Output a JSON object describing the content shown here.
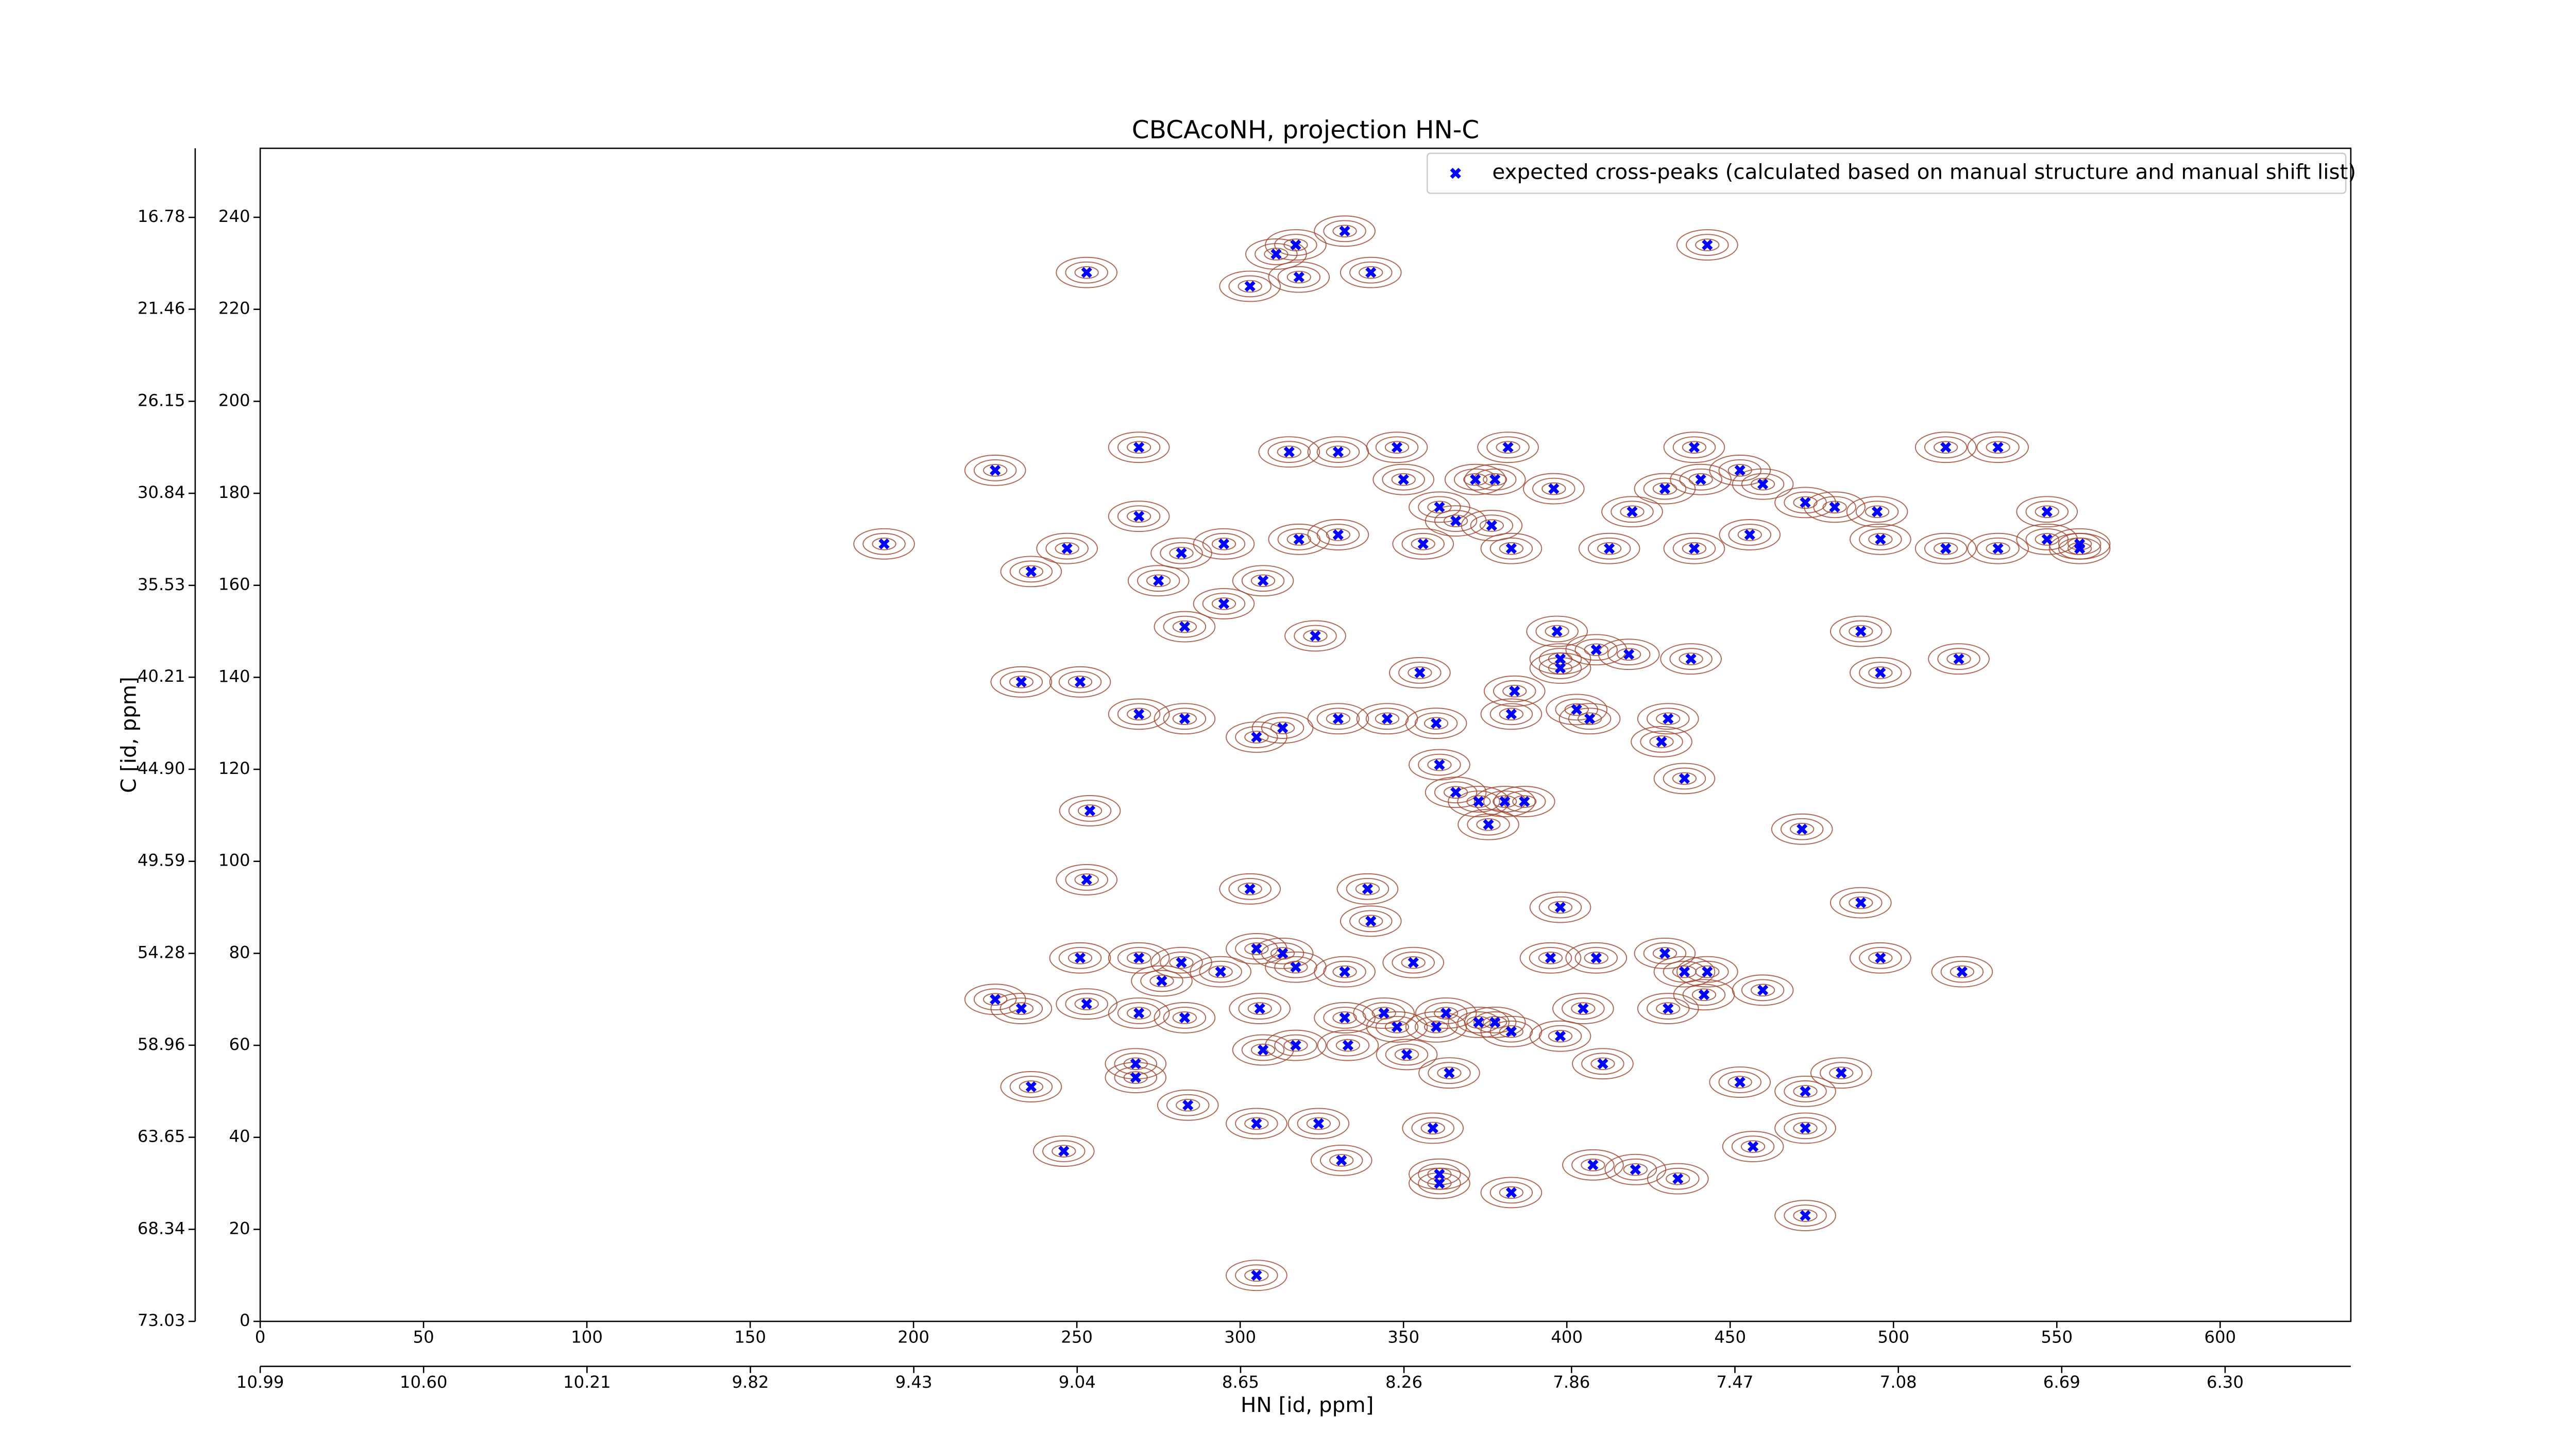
{
  "chart_data": {
    "type": "scatter",
    "title": "CBCAcoNH, projection HN-C",
    "xlabel": "HN [id, ppm]",
    "ylabel": "C [id, ppm]",
    "legend": "upper right",
    "xlim": [
      0,
      640
    ],
    "ylim": [
      0,
      255
    ],
    "xticks": [
      0,
      50,
      100,
      150,
      200,
      250,
      300,
      350,
      400,
      450,
      500,
      550,
      600
    ],
    "yticks": [
      0,
      20,
      40,
      60,
      80,
      100,
      120,
      140,
      160,
      180,
      200,
      220,
      240
    ],
    "x2lim": [
      10.99,
      6.0
    ],
    "x2ticks": [
      10.99,
      {
        "value": 10.6,
        "label": "10.60"
      },
      10.21,
      9.82,
      9.43,
      9.04,
      8.65,
      8.26,
      7.86,
      7.47,
      7.08,
      6.69,
      {
        "value": 6.3,
        "label": "6.30"
      }
    ],
    "y2lim": [
      73.03,
      13.26
    ],
    "y2ticks": [
      73.03,
      68.34,
      63.65,
      58.96,
      54.28,
      49.59,
      {
        "value": 44.9,
        "label": "44.90"
      },
      40.21,
      35.53,
      30.84,
      26.15,
      21.46,
      16.78
    ],
    "contour_color": "#a0422a",
    "series": [
      {
        "name": "expected cross-peaks (calculated based on manual structure and manual shift list)",
        "color": "#0000ff",
        "x": [
          253,
          303,
          311,
          317,
          318,
          332,
          340,
          443,
          225,
          269,
          315,
          330,
          348,
          382,
          439,
          516,
          532,
          350,
          372,
          378,
          396,
          430,
          441,
          453,
          460,
          473,
          482,
          495,
          361,
          366,
          377,
          420,
          269,
          318,
          330,
          356,
          383,
          413,
          439,
          456,
          496,
          516,
          532,
          547,
          547,
          557,
          557,
          191,
          247,
          236,
          282,
          295,
          275,
          307,
          295,
          283,
          323,
          490,
          397,
          398,
          233,
          251,
          409,
          398,
          419,
          438,
          496,
          520,
          355,
          384,
          403,
          269,
          283,
          330,
          345,
          360,
          305,
          313,
          383,
          407,
          431,
          429,
          436,
          361,
          366,
          373,
          381,
          387,
          254,
          376,
          472,
          253,
          303,
          339,
          398,
          340,
          490,
          305,
          251,
          269,
          282,
          294,
          313,
          317,
          276,
          332,
          353,
          395,
          409,
          430,
          436,
          443,
          496,
          521,
          225,
          233,
          253,
          269,
          283,
          306,
          332,
          344,
          348,
          360,
          363,
          373,
          378,
          383,
          398,
          405,
          431,
          442,
          460,
          307,
          317,
          333,
          351,
          411,
          364,
          268,
          268,
          236,
          453,
          473,
          484,
          284,
          305,
          324,
          359,
          473,
          246,
          331,
          408,
          421,
          434,
          457,
          361,
          361,
          383,
          473,
          305
        ],
        "values": [
          228,
          225,
          232,
          234,
          227,
          237,
          228,
          234,
          185,
          190,
          189,
          189,
          190,
          190,
          190,
          190,
          190,
          183,
          183,
          183,
          181,
          181,
          183,
          185,
          182,
          178,
          177,
          176,
          177,
          174,
          173,
          176,
          175,
          170,
          171,
          169,
          168,
          168,
          168,
          171,
          170,
          168,
          168,
          176,
          170,
          169,
          168,
          169,
          168,
          163,
          167,
          169,
          161,
          161,
          156,
          151,
          149,
          150,
          150,
          142,
          139,
          139,
          146,
          144,
          145,
          144,
          141,
          144,
          141,
          137,
          133,
          132,
          131,
          131,
          131,
          130,
          127,
          129,
          132,
          131,
          131,
          126,
          118,
          121,
          115,
          113,
          113,
          113,
          111,
          108,
          107,
          96,
          94,
          94,
          90,
          87,
          91,
          81,
          79,
          79,
          78,
          76,
          80,
          77,
          74,
          76,
          78,
          79,
          79,
          80,
          76,
          76,
          79,
          76,
          70,
          68,
          69,
          67,
          66,
          68,
          66,
          67,
          64,
          64,
          67,
          65,
          65,
          63,
          62,
          68,
          68,
          71,
          72,
          59,
          60,
          60,
          58,
          56,
          54,
          56,
          53,
          51,
          52,
          50,
          54,
          47,
          43,
          43,
          42,
          42,
          37,
          35,
          34,
          33,
          31,
          38,
          32,
          30,
          28,
          23,
          10
        ]
      }
    ]
  }
}
